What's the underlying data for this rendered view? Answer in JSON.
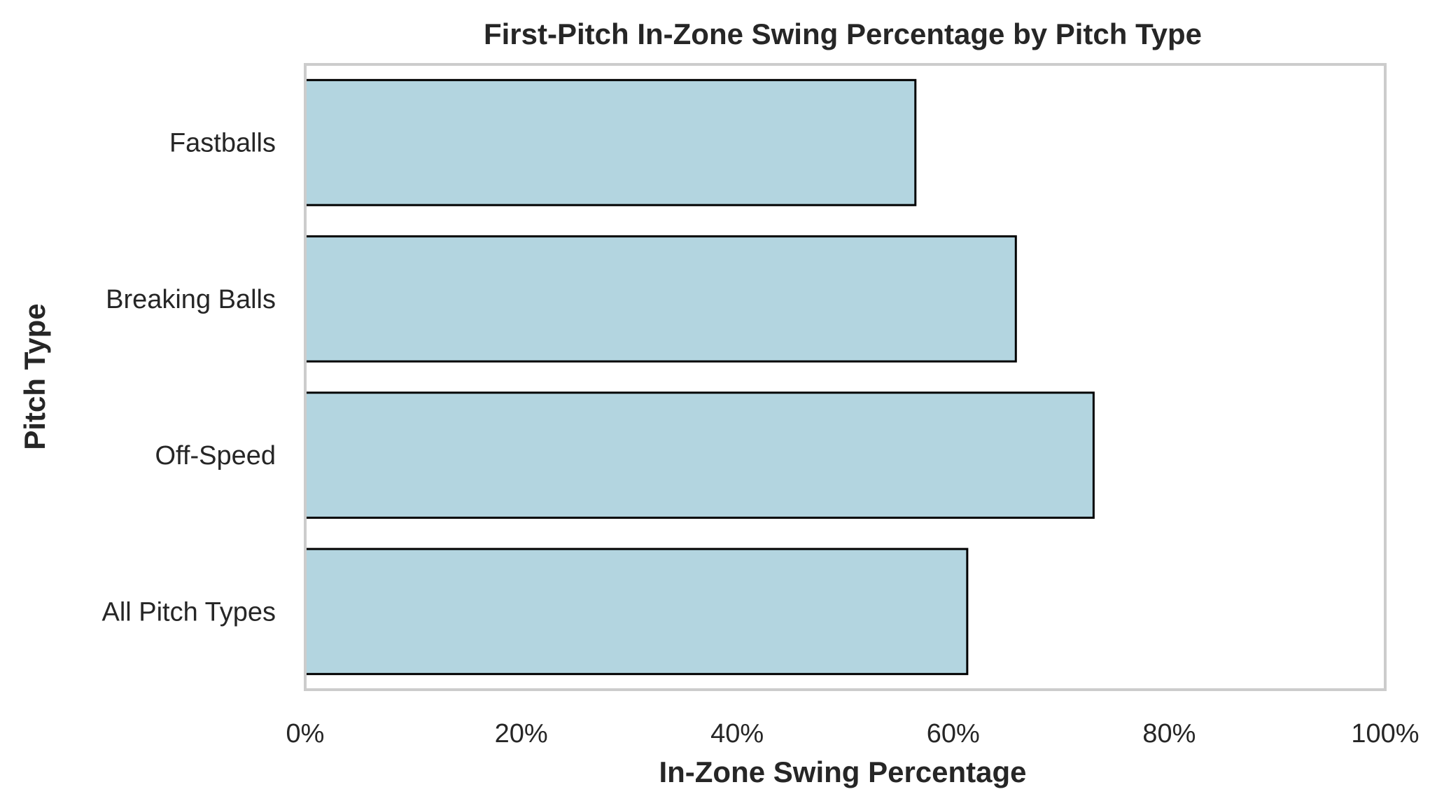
{
  "chart_data": {
    "type": "bar",
    "orientation": "horizontal",
    "title": "First-Pitch In-Zone Swing Percentage by Pitch Type",
    "xlabel": "In-Zone Swing Percentage",
    "ylabel": "Pitch Type",
    "categories": [
      "Fastballs",
      "Breaking Balls",
      "Off-Speed",
      "All Pitch Types"
    ],
    "values": [
      56.5,
      65.8,
      73.0,
      61.3
    ],
    "xlim": [
      0,
      100
    ],
    "x_ticks": [
      0,
      20,
      40,
      60,
      80,
      100
    ],
    "x_tick_labels": [
      "0%",
      "20%",
      "40%",
      "60%",
      "80%",
      "100%"
    ],
    "grid": false,
    "bar_color": "#b3d5e0",
    "bar_edge_color": "#000000",
    "frame_color": "#cccccc"
  }
}
